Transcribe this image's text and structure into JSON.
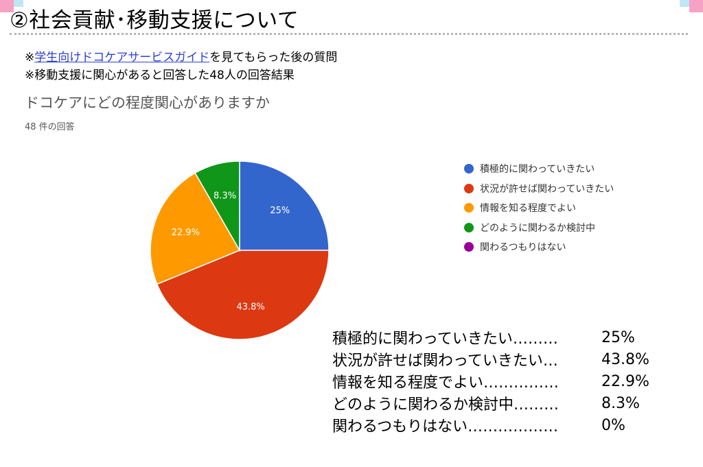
{
  "header": {
    "title": "②社会貢献･移動支援について"
  },
  "notes": {
    "line1_prefix": "※",
    "line1_link": "学生向けドコケアサービスガイド",
    "line1_suffix": "を見てもらった後の質問",
    "line2": "※移動支援に関心があると回答した48人の回答結果"
  },
  "chart_data": {
    "type": "pie",
    "title": "ドコケアにどの程度関心がありますか",
    "subtitle": "48 件の回答",
    "legend_position": "right",
    "slices": [
      {
        "label": "積極的に関わっていきたい",
        "value": 25,
        "display": "25%",
        "color": "#3366cc"
      },
      {
        "label": "状況が許せば関わっていきたい",
        "value": 43.8,
        "display": "43.8%",
        "color": "#dc3912"
      },
      {
        "label": "情報を知る程度でよい",
        "value": 22.9,
        "display": "22.9%",
        "color": "#ff9900"
      },
      {
        "label": "どのように関わるか検討中",
        "value": 8.3,
        "display": "8.3%",
        "color": "#109618"
      },
      {
        "label": "関わるつもりはない",
        "value": 0,
        "display": "",
        "color": "#990099"
      }
    ]
  },
  "summary": {
    "rows": [
      {
        "label": "積極的に関わっていきたい………",
        "value": "25%"
      },
      {
        "label": "状況が許せば関わっていきたい…",
        "value": "43.8%"
      },
      {
        "label": "情報を知る程度でよい……………",
        "value": "22.9%"
      },
      {
        "label": "どのように関わるか検討中………",
        "value": "8.3%"
      },
      {
        "label": "関わるつもりはない………………",
        "value": "0%"
      }
    ]
  }
}
